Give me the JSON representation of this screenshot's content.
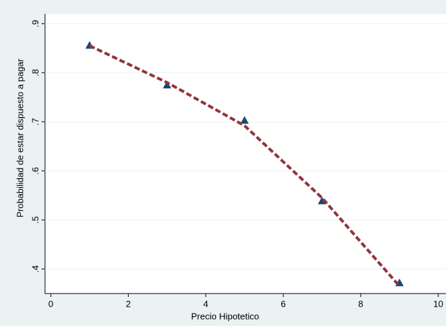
{
  "chart_data": {
    "type": "scatter",
    "x_label": "Precio Hipotetico",
    "y_label": "Probabilidad de estar dispuesto a pagar",
    "series": [
      {
        "type": "scatter",
        "color": "#1a476f",
        "x": [
          1,
          3,
          5,
          7,
          9
        ],
        "values": [
          0.856,
          0.775,
          0.703,
          0.539,
          0.372
        ]
      },
      {
        "type": "line",
        "color": "#90353b",
        "dashed": true,
        "x": [
          1,
          3,
          5,
          7,
          9
        ],
        "values": [
          0.855,
          0.78,
          0.692,
          0.545,
          0.365
        ]
      }
    ],
    "xlim": [
      -0.15,
      10.2
    ],
    "xticks": [
      0,
      2,
      4,
      6,
      8,
      10
    ],
    "ylim": [
      0.35,
      0.92
    ],
    "yticks": [
      {
        "value": 0.4,
        "label": ".4"
      },
      {
        "value": 0.5,
        "label": ".5"
      },
      {
        "value": 0.6,
        "label": ".6"
      },
      {
        "value": 0.7,
        "label": ".7"
      },
      {
        "value": 0.8,
        "label": ".8"
      },
      {
        "value": 0.9,
        "label": ".9"
      }
    ],
    "grid": true
  }
}
